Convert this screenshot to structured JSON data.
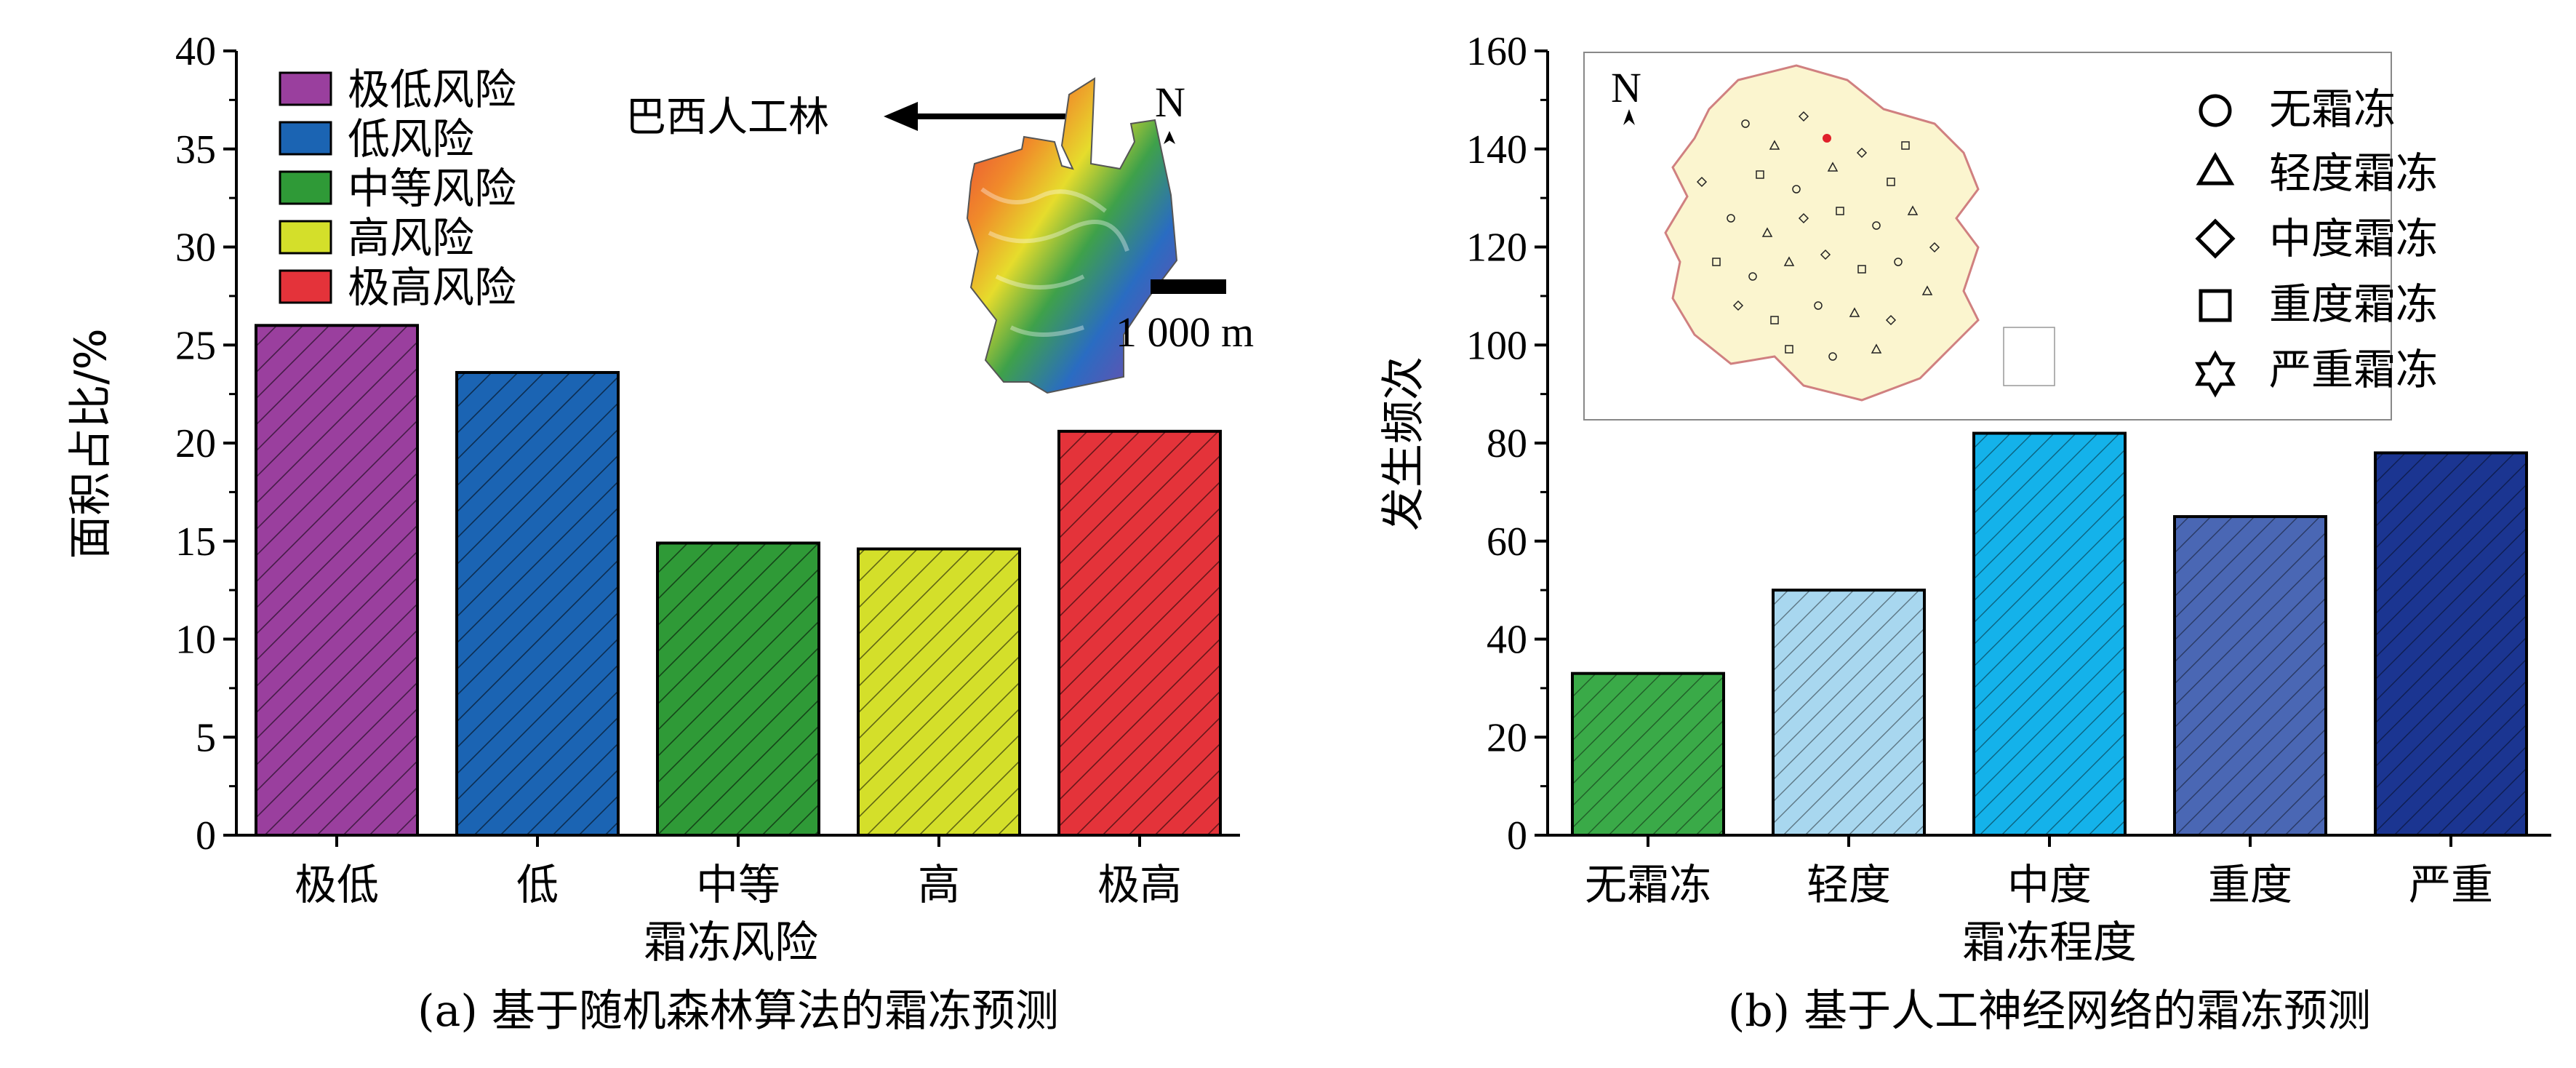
{
  "chart_data": [
    {
      "type": "bar",
      "categories": [
        "极低",
        "低",
        "中等",
        "高",
        "极高"
      ],
      "values": [
        26.0,
        23.6,
        14.9,
        14.6,
        20.6
      ],
      "colors": [
        "#9a3f9e",
        "#1b64b3",
        "#2f9a37",
        "#d4df2a",
        "#e4333a"
      ],
      "xlabel": "霜冻风险",
      "ylabel": "面积占比/%",
      "ylim": [
        0,
        40
      ],
      "yticks": [
        "0",
        "5",
        "10",
        "15",
        "20",
        "25",
        "30",
        "35",
        "40"
      ],
      "legend": [
        "极低风险",
        "低风险",
        "中等风险",
        "高风险",
        "极高风险"
      ],
      "legend_position": "top-left",
      "caption": "(a) 基于随机森林算法的霜冻预测",
      "inset": {
        "arrow_label": "巴西人工林",
        "north": "N",
        "scale": "1 000 m"
      }
    },
    {
      "type": "bar",
      "categories": [
        "无霜冻",
        "轻度",
        "中度",
        "重度",
        "严重"
      ],
      "values": [
        33,
        50,
        82,
        65,
        78
      ],
      "colors": [
        "#3aaa48",
        "#a8d7ef",
        "#14b2ea",
        "#4a67b4",
        "#1b3591"
      ],
      "xlabel": "霜冻程度",
      "ylabel": "发生频次",
      "ylim": [
        0,
        160
      ],
      "yticks": [
        "0",
        "20",
        "40",
        "60",
        "80",
        "100",
        "120",
        "140",
        "160"
      ],
      "legend": [
        "无霜冻",
        "轻度霜冻",
        "中度霜冻",
        "重度霜冻",
        "严重霜冻"
      ],
      "legend_position": "top-right",
      "caption": "(b) 基于人工神经网络的霜冻预测",
      "inset": {
        "north": "N"
      }
    }
  ]
}
